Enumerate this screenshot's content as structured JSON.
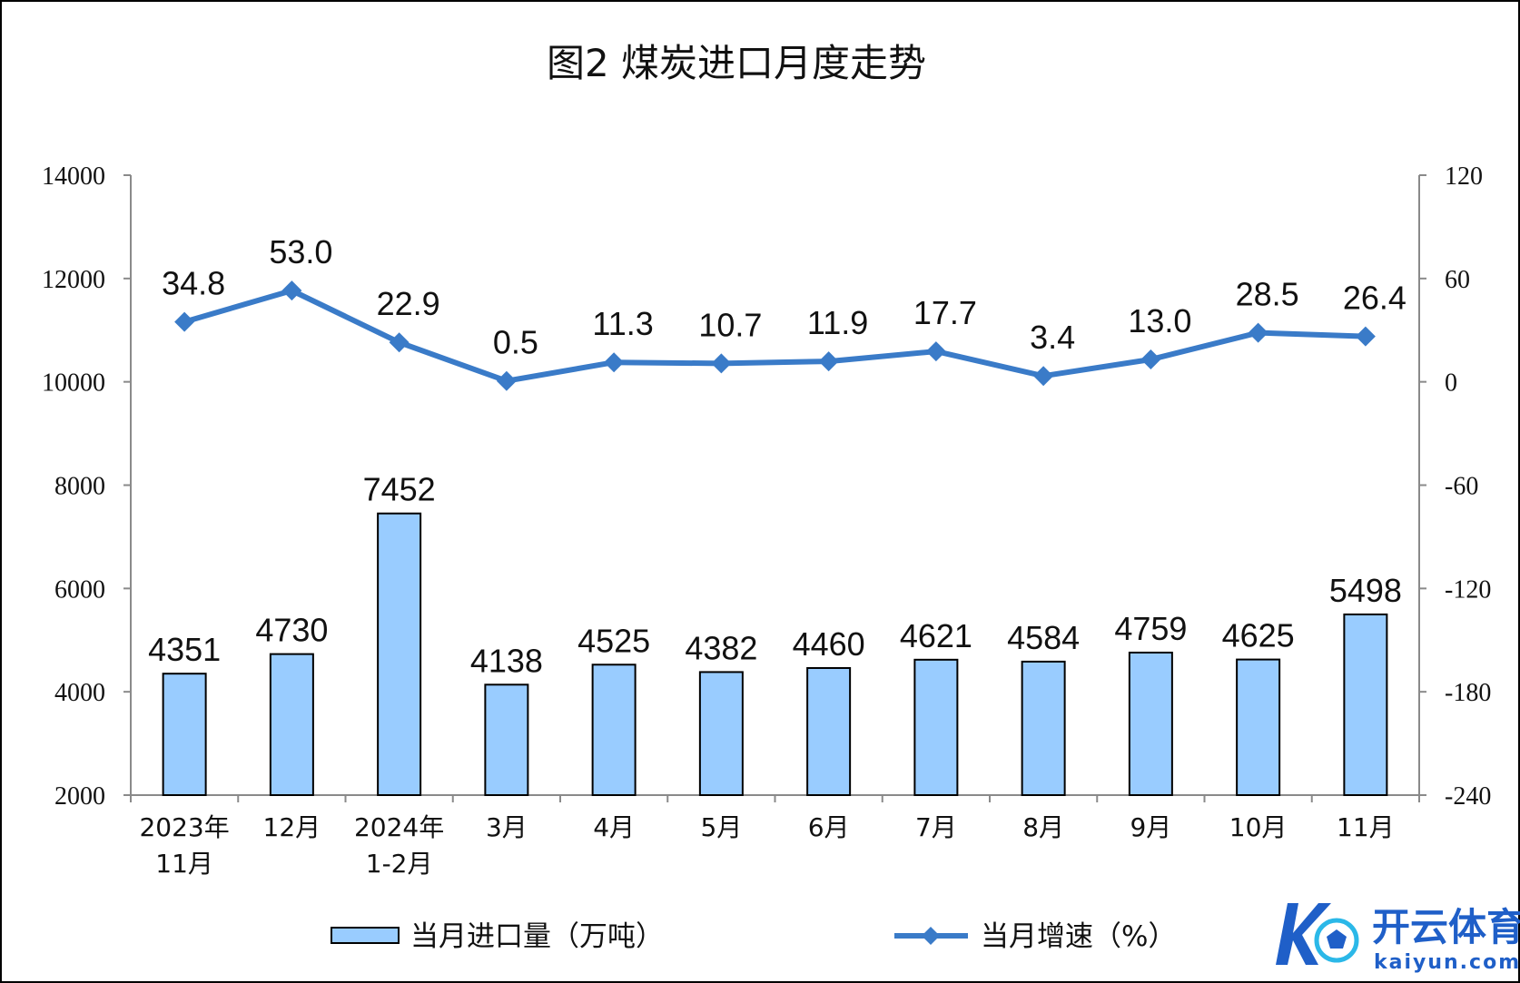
{
  "chart_data": {
    "type": "bar",
    "title": "图2  煤炭进口月度走势",
    "categories": [
      [
        "2023年",
        "11月"
      ],
      [
        "12月"
      ],
      [
        "2024年",
        "1-2月"
      ],
      [
        "3月"
      ],
      [
        "4月"
      ],
      [
        "5月"
      ],
      [
        "6月"
      ],
      [
        "7月"
      ],
      [
        "8月"
      ],
      [
        "9月"
      ],
      [
        "10月"
      ],
      [
        "11月"
      ]
    ],
    "series": [
      {
        "name": "当月进口量（万吨）",
        "type": "bar",
        "axis": "left",
        "color": "#99CCFF",
        "values": [
          4351,
          4730,
          7452,
          4138,
          4525,
          4382,
          4460,
          4621,
          4584,
          4759,
          4625,
          5498
        ]
      },
      {
        "name": "当月增速（%）",
        "type": "line",
        "axis": "right",
        "color": "#3A7BC8",
        "marker": "diamond",
        "values": [
          34.8,
          53.0,
          22.9,
          0.5,
          11.3,
          10.7,
          11.9,
          17.7,
          3.4,
          13.0,
          28.5,
          26.4
        ],
        "labels": [
          "34.8",
          "53.0",
          "22.9",
          "0.5",
          "11.3",
          "10.7",
          "11.9",
          "17.7",
          "3.4",
          "13.0",
          "28.5",
          "26.4"
        ]
      }
    ],
    "y_left": {
      "ylim": [
        2000,
        14000
      ],
      "ticks": [
        2000,
        4000,
        6000,
        8000,
        10000,
        12000,
        14000
      ]
    },
    "y_right": {
      "ylim": [
        -240,
        120
      ],
      "ticks": [
        -240,
        -180,
        -120,
        -60,
        0,
        60,
        120
      ]
    },
    "grid": false,
    "legend_position": "bottom"
  },
  "watermark": {
    "main": "开云体育",
    "sub": "kaiyun.com",
    "color": "#1F5FC8"
  }
}
